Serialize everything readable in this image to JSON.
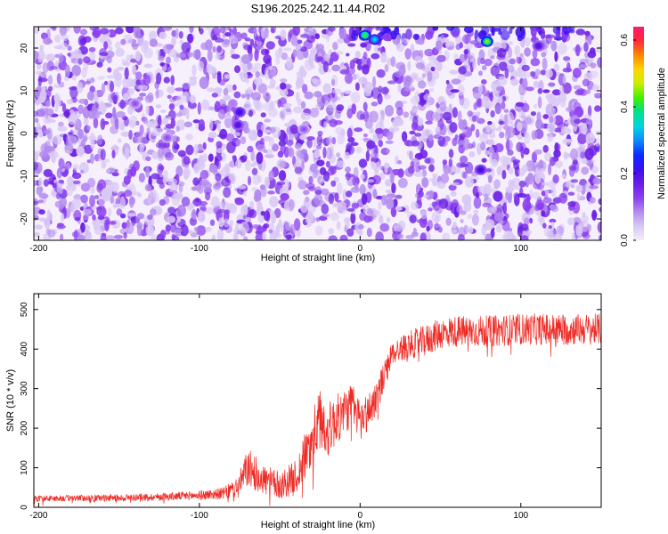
{
  "title": "S196.2025.242.11.44.R02",
  "colors": {
    "snr_line": "#ee2a24",
    "colormap": [
      "#f4eefb",
      "#d9c8f4",
      "#b38bef",
      "#8a3ef0",
      "#6a1de4",
      "#3a10f0",
      "#0a2cff",
      "#0a8cff",
      "#00d4e0",
      "#00e08c",
      "#40f000",
      "#c8f000",
      "#ffd400",
      "#ff8800",
      "#ff2a3c",
      "#ff1a6a"
    ]
  },
  "chart_data": [
    {
      "type": "heatmap",
      "xlabel": "Height of straight line (km)",
      "ylabel": "Frequency (Hz)",
      "xlim": [
        -203,
        150
      ],
      "ylim": [
        -25,
        25
      ],
      "xticks": [
        -200,
        -100,
        0,
        100
      ],
      "xtick_labels": [
        "-200",
        "-100",
        "0",
        "100"
      ],
      "yticks": [
        -20,
        -10,
        0,
        10,
        20
      ],
      "ytick_labels": [
        "-20",
        "-10",
        "0",
        "10",
        "20"
      ],
      "colorbar": {
        "label": "Normalized spectral amplitude",
        "range": [
          0.0,
          0.64
        ],
        "ticks": [
          0.0,
          0.2,
          0.4,
          0.6
        ],
        "tick_labels": [
          "0.0",
          "0.2",
          "0.4",
          "0.6"
        ]
      },
      "hotspots": [
        {
          "x": 3,
          "y": 23,
          "value": 0.42
        },
        {
          "x": 9,
          "y": 22,
          "value": 0.35
        },
        {
          "x": 79,
          "y": 21.5,
          "value": 0.45
        },
        {
          "x": -75,
          "y": 5,
          "value": 0.22
        },
        {
          "x": -76,
          "y": 2,
          "value": 0.2
        },
        {
          "x": 75,
          "y": -8.5,
          "value": 0.22
        },
        {
          "x": 111,
          "y": 20.5,
          "value": 0.2
        },
        {
          "x": -120,
          "y": -1,
          "value": 0.12
        },
        {
          "x": -140,
          "y": 7,
          "value": 0.12
        },
        {
          "x": -35,
          "y": 1,
          "value": 0.12
        }
      ]
    },
    {
      "type": "line",
      "xlabel": "Height of straight line (km)",
      "ylabel": "SNR (10 * v/v)",
      "xlim": [
        -203,
        150
      ],
      "ylim": [
        0,
        540
      ],
      "xticks": [
        -200,
        -100,
        0,
        100
      ],
      "xtick_labels": [
        "-200",
        "-100",
        "0",
        "100"
      ],
      "yticks": [
        0,
        100,
        200,
        300,
        400,
        500
      ],
      "ytick_labels": [
        "0",
        "100",
        "200",
        "300",
        "400",
        "500"
      ],
      "series": [
        {
          "name": "SNR",
          "x": [
            -203,
            -180,
            -150,
            -120,
            -100,
            -85,
            -76,
            -70,
            -60,
            -50,
            -40,
            -35,
            -30,
            -25,
            -20,
            -15,
            -10,
            -5,
            0,
            5,
            10,
            15,
            20,
            30,
            40,
            50,
            60,
            80,
            100,
            120,
            150
          ],
          "values": [
            22,
            23,
            24,
            27,
            30,
            35,
            50,
            100,
            70,
            55,
            75,
            120,
            170,
            220,
            195,
            220,
            240,
            260,
            220,
            240,
            280,
            330,
            390,
            410,
            420,
            440,
            445,
            445,
            450,
            450,
            450
          ],
          "noise_amplitude": [
            8,
            8,
            9,
            10,
            12,
            15,
            30,
            50,
            40,
            35,
            45,
            60,
            70,
            80,
            70,
            65,
            60,
            55,
            55,
            50,
            45,
            40,
            30,
            35,
            40,
            40,
            40,
            40,
            40,
            40,
            40
          ]
        }
      ]
    }
  ]
}
